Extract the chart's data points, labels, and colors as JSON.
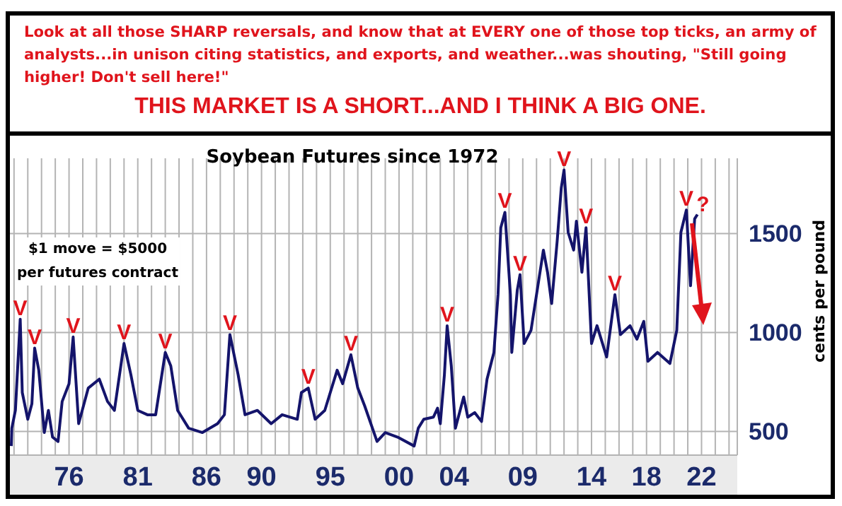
{
  "chart_data": {
    "type": "line",
    "title": "Soybean Futures since 1972",
    "ylabel": "cents per pound",
    "annotations": [
      "Look at all those SHARP reversals, and know that at EVERY one of those top ticks, an army of analysts...in unison citing statistics, and exports, and weather...was shouting, \"Still going higher! Don't sell here!\"",
      "THIS MARKET IS A SHORT...AND I THINK A BIG ONE.",
      "$1 move = $5000 per futures contract",
      {
        "text": "V",
        "x": 1972.45,
        "y": 1067
      },
      {
        "text": "V",
        "x": 1973.5,
        "y": 921
      },
      {
        "text": "V",
        "x": 1976.3,
        "y": 977
      },
      {
        "text": "V",
        "x": 1980.0,
        "y": 944
      },
      {
        "text": "V",
        "x": 1983.0,
        "y": 899
      },
      {
        "text": "V",
        "x": 1987.7,
        "y": 989
      },
      {
        "text": "V",
        "x": 1993.4,
        "y": 719
      },
      {
        "text": "V",
        "x": 1996.5,
        "y": 887
      },
      {
        "text": "V",
        "x": 2003.5,
        "y": 1034
      },
      {
        "text": "V",
        "x": 2007.7,
        "y": 1607
      },
      {
        "text": "V",
        "x": 2008.8,
        "y": 1292
      },
      {
        "text": "V",
        "x": 2012.0,
        "y": 1821
      },
      {
        "text": "V",
        "x": 2013.6,
        "y": 1529
      },
      {
        "text": "V",
        "x": 2015.7,
        "y": 1191
      },
      {
        "text": "V",
        "x": 2020.9,
        "y": 1619
      },
      {
        "text": "?",
        "x": 2022.1,
        "y": 1590
      }
    ],
    "x": [
      1971.8,
      1971.84,
      1972.1,
      1972.45,
      1972.6,
      1973.0,
      1973.3,
      1973.5,
      1973.8,
      1974.2,
      1974.5,
      1974.8,
      1975.2,
      1975.5,
      1976.0,
      1976.3,
      1976.7,
      1977.4,
      1978.2,
      1978.8,
      1979.3,
      1980.0,
      1980.5,
      1981.0,
      1981.7,
      1982.3,
      1983.0,
      1983.4,
      1983.9,
      1984.7,
      1985.7,
      1986.8,
      1987.3,
      1987.7,
      1988.3,
      1988.8,
      1989.7,
      1990.7,
      1991.5,
      1992.6,
      1992.9,
      1993.4,
      1993.9,
      1994.6,
      1995.5,
      1995.9,
      1996.5,
      1997.0,
      1997.5,
      1998.4,
      1999.0,
      1999.9,
      2001.1,
      2001.4,
      2001.8,
      2002.5,
      2002.8,
      2003.0,
      2003.3,
      2003.5,
      2003.8,
      2004.1,
      2004.7,
      2005.0,
      2005.5,
      2006.0,
      2006.4,
      2006.9,
      2007.2,
      2007.4,
      2007.7,
      2008.1,
      2008.2,
      2008.6,
      2008.8,
      2009.1,
      2009.6,
      2010.1,
      2010.5,
      2010.8,
      2011.1,
      2011.5,
      2011.8,
      2012.0,
      2012.3,
      2012.7,
      2012.9,
      2013.3,
      2013.6,
      2014.0,
      2014.4,
      2015.1,
      2015.7,
      2016.1,
      2016.8,
      2017.3,
      2017.8,
      2018.1,
      2018.8,
      2019.7,
      2020.2,
      2020.5,
      2020.9,
      2021.2,
      2021.5,
      2021.7
    ],
    "values": [
      426,
      516,
      606,
      1067,
      696,
      561,
      640,
      921,
      809,
      494,
      606,
      471,
      449,
      651,
      741,
      977,
      539,
      719,
      764,
      651,
      606,
      944,
      786,
      606,
      584,
      584,
      899,
      831,
      606,
      516,
      494,
      539,
      584,
      989,
      786,
      584,
      606,
      539,
      584,
      561,
      696,
      719,
      561,
      606,
      809,
      741,
      887,
      719,
      629,
      449,
      494,
      471,
      426,
      516,
      561,
      572,
      617,
      539,
      786,
      1034,
      831,
      516,
      674,
      572,
      595,
      550,
      764,
      899,
      1191,
      1529,
      1607,
      1191,
      899,
      1214,
      1292,
      944,
      1011,
      1236,
      1416,
      1304,
      1146,
      1461,
      1731,
      1821,
      1506,
      1416,
      1562,
      1304,
      1529,
      944,
      1034,
      876,
      1191,
      989,
      1034,
      966,
      1056,
      854,
      899,
      843,
      1011,
      1506,
      1619,
      1236,
      1574,
      1596
    ],
    "color": "#14146b",
    "xlim": [
      1971.7,
      2024.6
    ],
    "xticks": [
      {
        "value": 1972,
        "label": null
      },
      {
        "value": 1973,
        "label": null
      },
      {
        "value": 1974,
        "label": null
      },
      {
        "value": 1975,
        "label": null
      },
      {
        "value": 1976,
        "label": "76"
      },
      {
        "value": 1977,
        "label": null
      },
      {
        "value": 1978,
        "label": null
      },
      {
        "value": 1979,
        "label": null
      },
      {
        "value": 1980,
        "label": null
      },
      {
        "value": 1981,
        "label": "81"
      },
      {
        "value": 1982,
        "label": null
      },
      {
        "value": 1983,
        "label": null
      },
      {
        "value": 1984,
        "label": null
      },
      {
        "value": 1985,
        "label": null
      },
      {
        "value": 1986,
        "label": "86"
      },
      {
        "value": 1987,
        "label": null
      },
      {
        "value": 1988,
        "label": null
      },
      {
        "value": 1989,
        "label": null
      },
      {
        "value": 1990,
        "label": "90"
      },
      {
        "value": 1991,
        "label": null
      },
      {
        "value": 1992,
        "label": null
      },
      {
        "value": 1993,
        "label": null
      },
      {
        "value": 1994,
        "label": null
      },
      {
        "value": 1995,
        "label": "95"
      },
      {
        "value": 1996,
        "label": null
      },
      {
        "value": 1997,
        "label": null
      },
      {
        "value": 1998,
        "label": null
      },
      {
        "value": 1999,
        "label": null
      },
      {
        "value": 2000,
        "label": "00"
      },
      {
        "value": 2001,
        "label": null
      },
      {
        "value": 2002,
        "label": null
      },
      {
        "value": 2003,
        "label": null
      },
      {
        "value": 2004,
        "label": "04"
      },
      {
        "value": 2005,
        "label": null
      },
      {
        "value": 2006,
        "label": null
      },
      {
        "value": 2007,
        "label": null
      },
      {
        "value": 2008,
        "label": null
      },
      {
        "value": 2009,
        "label": "09"
      },
      {
        "value": 2010,
        "label": null
      },
      {
        "value": 2011,
        "label": null
      },
      {
        "value": 2012,
        "label": null
      },
      {
        "value": 2013,
        "label": null
      },
      {
        "value": 2014,
        "label": "14"
      },
      {
        "value": 2015,
        "label": null
      },
      {
        "value": 2016,
        "label": null
      },
      {
        "value": 2017,
        "label": null
      },
      {
        "value": 2018,
        "label": "18"
      },
      {
        "value": 2019,
        "label": null
      },
      {
        "value": 2020,
        "label": null
      },
      {
        "value": 2021,
        "label": null
      },
      {
        "value": 2022,
        "label": "22"
      },
      {
        "value": 2023,
        "label": null
      },
      {
        "value": 2024,
        "label": null
      }
    ],
    "ylim": [
      380,
      1880
    ],
    "yticks": [
      500,
      1000,
      1500
    ],
    "grid": true,
    "marker": "none",
    "line_style": "solid"
  }
}
